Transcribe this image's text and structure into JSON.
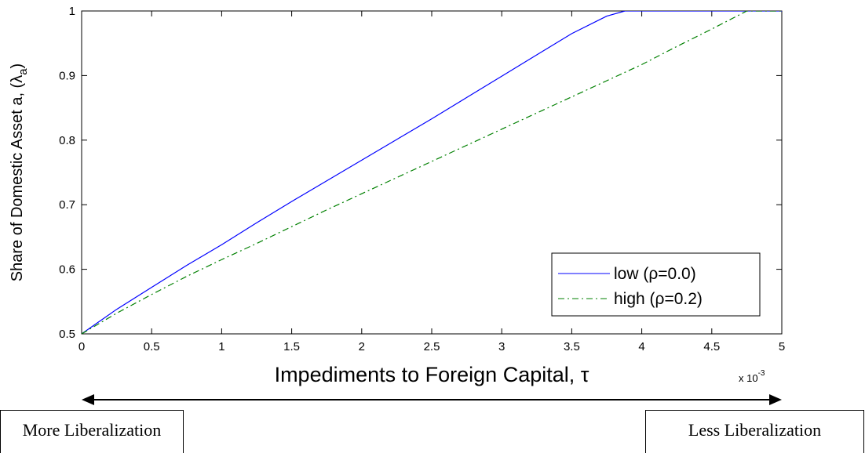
{
  "chart_data": {
    "type": "line",
    "title": "",
    "xlabel": "Impediments to Foreign Capital, τ",
    "ylabel": "Share of Domestic Asset a, (λa)",
    "ylabel_main": "Share of Domestic Asset a, (λ",
    "ylabel_sub": "a",
    "ylabel_close": ")",
    "x_exponent_label": "x 10",
    "x_exponent_power": "-3",
    "xlim": [
      0,
      5
    ],
    "ylim": [
      0.5,
      1
    ],
    "x_ticks": [
      "0",
      "0.5",
      "1",
      "1.5",
      "2",
      "2.5",
      "3",
      "3.5",
      "4",
      "4.5",
      "5"
    ],
    "y_ticks": [
      "0.5",
      "0.6",
      "0.7",
      "0.8",
      "0.9",
      "1"
    ],
    "grid": false,
    "legend_position": "bottom-right",
    "series": [
      {
        "name": "low  (ρ=0.0)",
        "color": "#0000ff",
        "style": "solid",
        "x": [
          0,
          0.25,
          0.5,
          0.75,
          1.0,
          1.25,
          1.5,
          1.75,
          2.0,
          2.25,
          2.5,
          2.75,
          3.0,
          3.25,
          3.5,
          3.75,
          3.88,
          4.0,
          4.5,
          5.0
        ],
        "y": [
          0.5,
          0.538,
          0.572,
          0.606,
          0.638,
          0.672,
          0.705,
          0.737,
          0.769,
          0.801,
          0.833,
          0.866,
          0.899,
          0.932,
          0.965,
          0.992,
          1.0,
          1.0,
          1.0,
          1.0
        ]
      },
      {
        "name": "high (ρ=0.2)",
        "color": "#008000",
        "style": "dashdot",
        "x": [
          0,
          0.25,
          0.5,
          0.75,
          1.0,
          1.25,
          1.5,
          1.75,
          2.0,
          2.25,
          2.5,
          2.75,
          3.0,
          3.25,
          3.5,
          3.75,
          4.0,
          4.25,
          4.5,
          4.75,
          5.0
        ],
        "y": [
          0.5,
          0.532,
          0.561,
          0.589,
          0.615,
          0.64,
          0.666,
          0.692,
          0.717,
          0.742,
          0.767,
          0.792,
          0.817,
          0.842,
          0.867,
          0.892,
          0.917,
          0.945,
          0.972,
          1.0,
          1.0
        ]
      }
    ]
  },
  "annotations": {
    "more_liberalization": "More Liberalization",
    "less_liberalization": "Less Liberalization"
  }
}
